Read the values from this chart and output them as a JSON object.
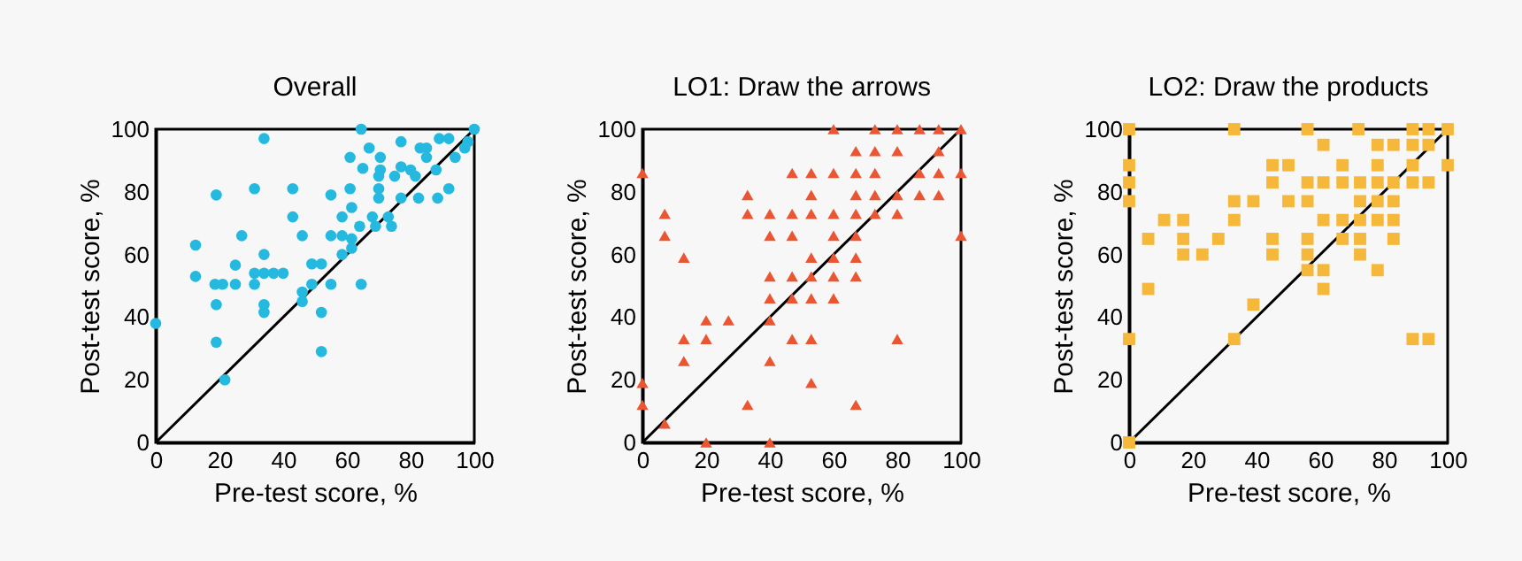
{
  "chart_data": [
    {
      "type": "scatter",
      "title": "Overall",
      "xlabel": "Pre-test score, %",
      "ylabel": "Post-test score, %",
      "xlim": [
        0,
        100
      ],
      "ylim": [
        0,
        100
      ],
      "xticks": [
        0,
        20,
        40,
        60,
        80,
        100
      ],
      "yticks": [
        0,
        20,
        40,
        60,
        80,
        100
      ],
      "series": [
        {
          "color": "#25b9e0",
          "marker": "circle",
          "x": [
            64.5,
            100,
            34,
            77,
            89,
            92,
            67,
            83,
            85,
            98,
            97,
            61,
            70.5,
            85,
            94,
            77,
            65,
            70.5,
            80,
            88,
            70,
            75,
            81.5,
            19,
            31,
            43,
            61,
            92,
            55,
            70,
            70,
            77,
            82.5,
            88.5,
            61.5,
            43,
            58.5,
            68,
            73,
            69,
            74,
            64,
            12.5,
            27,
            46,
            55,
            58.5,
            61.5,
            61.5,
            34,
            58.5,
            25,
            49,
            52,
            12.5,
            31,
            34,
            37,
            40,
            18.6,
            21,
            25,
            31,
            49,
            55,
            64.5,
            46,
            46,
            19,
            34,
            34,
            52,
            0,
            19,
            52,
            21.7
          ],
          "values": [
            100,
            100,
            97,
            96,
            97,
            97,
            94,
            94,
            94,
            96,
            94,
            91,
            91,
            91,
            91,
            88,
            87.5,
            87,
            87,
            87,
            85,
            85,
            85,
            79,
            81,
            81,
            81,
            81,
            79,
            81,
            78,
            78,
            78,
            78,
            75,
            72,
            72,
            72,
            72,
            69,
            69,
            69,
            63,
            66,
            66,
            66,
            66,
            65,
            62,
            60,
            60,
            56.6,
            57,
            57,
            53,
            54,
            54,
            54,
            54,
            50.5,
            50.5,
            50.5,
            50.5,
            50.5,
            50.5,
            50.5,
            48,
            45,
            44,
            44,
            41.5,
            41.5,
            38,
            32,
            29,
            20
          ]
        },
        {
          "type": "line",
          "color": "#000000",
          "x": [
            0,
            100
          ],
          "values": [
            0,
            100
          ]
        }
      ]
    },
    {
      "type": "scatter",
      "title": "LO1: Draw the arrows",
      "xlabel": "Pre-test score, %",
      "ylabel": "Post-test score, %",
      "xlim": [
        0,
        100
      ],
      "ylim": [
        0,
        100
      ],
      "xticks": [
        0,
        20,
        40,
        60,
        80,
        100
      ],
      "yticks": [
        0,
        20,
        40,
        60,
        80,
        100
      ],
      "series": [
        {
          "color": "#ea5532",
          "marker": "triangle",
          "x": [
            60,
            73,
            80,
            87,
            93,
            100,
            67,
            73,
            80,
            93,
            0,
            47,
            53,
            60,
            67,
            73,
            87,
            93,
            100,
            33,
            53,
            67,
            73,
            80,
            87,
            93,
            7,
            33,
            40,
            47,
            53,
            60,
            67,
            73,
            80,
            7,
            40,
            47,
            60,
            67,
            100,
            13,
            53,
            60,
            67,
            40,
            47,
            53,
            60,
            67,
            40,
            47,
            53,
            60,
            20,
            27,
            40,
            13,
            20,
            47,
            53,
            80,
            13,
            40,
            0,
            53,
            0,
            33,
            67,
            7,
            20,
            40
          ],
          "values": [
            100,
            100,
            100,
            100,
            100,
            100,
            93,
            93,
            93,
            93,
            86,
            86,
            86,
            86,
            86,
            86,
            86,
            86,
            86,
            79,
            79,
            79,
            79,
            79,
            79,
            79,
            73,
            73,
            73,
            73,
            73,
            73,
            73,
            73,
            73,
            66,
            66,
            66,
            66,
            66,
            66,
            59,
            59,
            59,
            59,
            53,
            53,
            53,
            53,
            53,
            46,
            46,
            46,
            46,
            39,
            39,
            39,
            33,
            33,
            33,
            33,
            33,
            26,
            26,
            19,
            19,
            12,
            12,
            12,
            6,
            0,
            0
          ]
        },
        {
          "type": "line",
          "color": "#000000",
          "x": [
            0,
            100
          ],
          "values": [
            0,
            100
          ]
        }
      ]
    },
    {
      "type": "scatter",
      "title": "LO2: Draw the products",
      "xlabel": "Pre-test score, %",
      "ylabel": "Post-test score, %",
      "xlim": [
        0,
        100
      ],
      "ylim": [
        0,
        100
      ],
      "xticks": [
        0,
        20,
        40,
        60,
        80,
        100
      ],
      "yticks": [
        0,
        20,
        40,
        60,
        80,
        100
      ],
      "series": [
        {
          "color": "#f5b83a",
          "marker": "square",
          "x": [
            0,
            33,
            56,
            72,
            89,
            94,
            100,
            61,
            78,
            83,
            89,
            94,
            0,
            45,
            50,
            67,
            78,
            89,
            100,
            0,
            45,
            56,
            61,
            67,
            72.5,
            78,
            83,
            89,
            94,
            0,
            33,
            39,
            50,
            56,
            72.5,
            78,
            83,
            11,
            17,
            33,
            61,
            67,
            72.5,
            78,
            83,
            6,
            17,
            28,
            45,
            56,
            67,
            72.5,
            83,
            17,
            23,
            45,
            56,
            72.5,
            56,
            61,
            78,
            6,
            61,
            39,
            0,
            33,
            89,
            94,
            0
          ],
          "values": [
            100,
            100,
            100,
            100,
            100,
            100,
            100,
            95,
            95,
            95,
            95,
            95,
            88.5,
            88.5,
            88.5,
            88.5,
            88.5,
            88.5,
            88.5,
            83,
            83,
            83,
            83,
            83,
            83,
            83,
            83,
            83,
            83,
            77,
            77,
            77,
            77,
            77,
            77,
            77,
            77,
            71,
            71,
            71,
            71,
            71,
            71,
            71,
            71,
            65,
            65,
            65,
            65,
            65,
            65,
            65,
            65,
            60,
            60,
            60,
            60,
            60,
            55,
            55,
            55,
            49,
            49,
            44,
            33,
            33,
            33,
            33,
            0
          ]
        },
        {
          "type": "line",
          "color": "#000000",
          "x": [
            0,
            100
          ],
          "values": [
            0,
            100
          ]
        }
      ]
    }
  ]
}
